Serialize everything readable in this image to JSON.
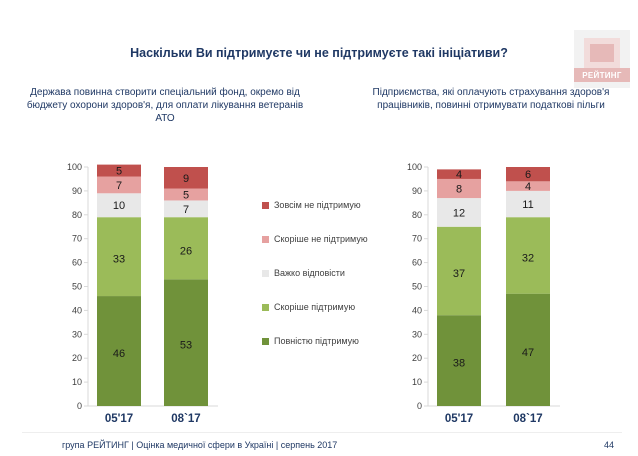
{
  "title": "Наскільки Ви підтримуєте чи не підтримуєте такі ініціативи?",
  "logo_text": "РЕЙТИНГ",
  "footer": "група РЕЙТИНГ  |  Оцінка медичної сфери в Україні  |  серпень 2017",
  "page_number": "44",
  "colors": {
    "fully": "#70923a",
    "rather": "#9bbb59",
    "hard": "#e8e8e8",
    "rather_not": "#e6a1a0",
    "not_at_all": "#c0504d",
    "text": "#1f3864",
    "logo": "#f2dcdb"
  },
  "legend": [
    {
      "key": "not_at_all",
      "label": "Зовсім не підтримую"
    },
    {
      "key": "rather_not",
      "label": "Скоріше не підтримую"
    },
    {
      "key": "hard",
      "label": "Важко відповісти"
    },
    {
      "key": "rather",
      "label": "Скоріше підтримую"
    },
    {
      "key": "fully",
      "label": "Повністю підтримую"
    }
  ],
  "chart_data": [
    {
      "type": "bar",
      "stacked": true,
      "title": "Держава повинна створити спеціальний фонд, окремо від бюджету охорони здоров'я, для оплати лікування ветеранів АТО",
      "categories": [
        "05'17",
        "08`17"
      ],
      "ylim": [
        0,
        100
      ],
      "yticks": [
        0,
        10,
        20,
        30,
        40,
        50,
        60,
        70,
        80,
        90,
        100
      ],
      "series": [
        {
          "name": "Повністю підтримую",
          "key": "fully",
          "values": [
            46,
            53
          ]
        },
        {
          "name": "Скоріше підтримую",
          "key": "rather",
          "values": [
            33,
            26
          ]
        },
        {
          "name": "Важко відповісти",
          "key": "hard",
          "values": [
            10,
            7
          ]
        },
        {
          "name": "Скоріше не підтримую",
          "key": "rather_not",
          "values": [
            7,
            5
          ]
        },
        {
          "name": "Зовсім не підтримую",
          "key": "not_at_all",
          "values": [
            5,
            9
          ]
        }
      ]
    },
    {
      "type": "bar",
      "stacked": true,
      "title": "Підприємства, які оплачують страхування здоров'я працівників, повинні отримувати податкові пільги",
      "categories": [
        "05'17",
        "08`17"
      ],
      "ylim": [
        0,
        100
      ],
      "yticks": [
        0,
        10,
        20,
        30,
        40,
        50,
        60,
        70,
        80,
        90,
        100
      ],
      "series": [
        {
          "name": "Повністю підтримую",
          "key": "fully",
          "values": [
            38,
            47
          ]
        },
        {
          "name": "Скоріше підтримую",
          "key": "rather",
          "values": [
            37,
            32
          ]
        },
        {
          "name": "Важко відповісти",
          "key": "hard",
          "values": [
            12,
            11
          ]
        },
        {
          "name": "Скоріше не підтримую",
          "key": "rather_not",
          "values": [
            8,
            4
          ]
        },
        {
          "name": "Зовсім не підтримую",
          "key": "not_at_all",
          "values": [
            4,
            6
          ]
        }
      ]
    }
  ]
}
